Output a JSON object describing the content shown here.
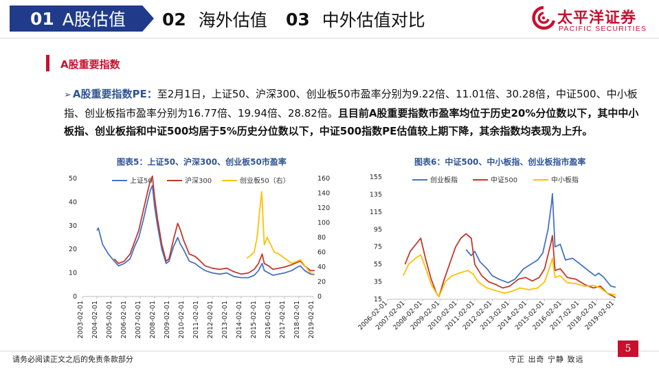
{
  "header": {
    "tabs": [
      {
        "num": "01",
        "label": "A股估值",
        "active": true
      },
      {
        "num": "02",
        "label": "海外估值",
        "active": false
      },
      {
        "num": "03",
        "label": "中外估值对比",
        "active": false
      }
    ],
    "logo_cn": "太平洋证券",
    "logo_en": "PACIFIC SECURITIES",
    "brand_color": "#c8102e",
    "tab_color": "#1f3b8a"
  },
  "section": {
    "title": "A股重要指数"
  },
  "paragraph": {
    "arrow": "➢",
    "lead": "A股重要指数PE：",
    "normal": "至2月1日，上证50、沪深300、创业板50市盈率分别为9.22倍、11.01倍、30.28倍，中证500、中小板指、创业板指市盈率分别为16.77倍、19.94倍、28.82倍。",
    "bold": "且目前A股重要指数市盈率均位于历史20%分位数以下，其中中小板指、创业板指和中证500均居于5%历史分位数以下，中证500指数PE估值较上期下降，其余指数均表现为上升。"
  },
  "chart_titles": {
    "chart5": "图表5：上证50、沪深300、创业板50市盈率",
    "chart6": "图表6：中证500、中小板指、创业板指市盈率"
  },
  "chart_data": [
    {
      "type": "line",
      "x_ticks": [
        "2003-02-01",
        "2004-02-01",
        "2005-02-01",
        "2006-02-01",
        "2007-02-01",
        "2008-02-01",
        "2009-02-01",
        "2010-02-01",
        "2011-02-01",
        "2012-02-01",
        "2013-02-01",
        "2014-02-01",
        "2015-02-01",
        "2016-02-01",
        "2017-02-01",
        "2018-02-01",
        "2019-02-01"
      ],
      "y_left": {
        "min": 0,
        "max": 50,
        "ticks": [
          0,
          10,
          20,
          30,
          40,
          50
        ]
      },
      "y_right": {
        "min": 0,
        "max": 160,
        "ticks": [
          0,
          20,
          40,
          60,
          80,
          100,
          120,
          140,
          160
        ]
      },
      "series": [
        {
          "name": "上证50",
          "color": "#4472c4",
          "axis": "left",
          "points": [
            [
              2004.0,
              28
            ],
            [
              2004.1,
              29
            ],
            [
              2004.4,
              22
            ],
            [
              2004.8,
              18
            ],
            [
              2005.2,
              15
            ],
            [
              2005.5,
              13
            ],
            [
              2005.9,
              14
            ],
            [
              2006.3,
              16
            ],
            [
              2006.6,
              21
            ],
            [
              2006.9,
              25
            ],
            [
              2007.2,
              32
            ],
            [
              2007.5,
              40
            ],
            [
              2007.7,
              45
            ],
            [
              2007.85,
              47
            ],
            [
              2008.0,
              38
            ],
            [
              2008.2,
              30
            ],
            [
              2008.5,
              20
            ],
            [
              2008.8,
              14
            ],
            [
              2009.0,
              15
            ],
            [
              2009.3,
              21
            ],
            [
              2009.6,
              25
            ],
            [
              2009.8,
              22
            ],
            [
              2010.0,
              20
            ],
            [
              2010.4,
              15
            ],
            [
              2010.8,
              14
            ],
            [
              2011.0,
              13
            ],
            [
              2011.5,
              11
            ],
            [
              2012.0,
              10
            ],
            [
              2012.5,
              9.5
            ],
            [
              2013.0,
              10
            ],
            [
              2013.5,
              8.5
            ],
            [
              2014.0,
              8
            ],
            [
              2014.5,
              8
            ],
            [
              2014.9,
              9
            ],
            [
              2015.2,
              11
            ],
            [
              2015.45,
              14
            ],
            [
              2015.6,
              11
            ],
            [
              2015.9,
              10
            ],
            [
              2016.2,
              9
            ],
            [
              2016.6,
              9.5
            ],
            [
              2017.0,
              10
            ],
            [
              2017.5,
              11
            ],
            [
              2017.9,
              12.5
            ],
            [
              2018.1,
              13
            ],
            [
              2018.4,
              11
            ],
            [
              2018.8,
              9.5
            ],
            [
              2019.08,
              9.22
            ]
          ]
        },
        {
          "name": "沪深300",
          "color": "#c0392b",
          "axis": "left",
          "points": [
            [
              2005.2,
              16
            ],
            [
              2005.5,
              14
            ],
            [
              2005.9,
              15
            ],
            [
              2006.3,
              18
            ],
            [
              2006.6,
              23
            ],
            [
              2006.9,
              28
            ],
            [
              2007.2,
              36
            ],
            [
              2007.5,
              44
            ],
            [
              2007.7,
              49
            ],
            [
              2007.85,
              51
            ],
            [
              2008.0,
              42
            ],
            [
              2008.2,
              33
            ],
            [
              2008.5,
              22
            ],
            [
              2008.8,
              15
            ],
            [
              2009.0,
              16
            ],
            [
              2009.3,
              24
            ],
            [
              2009.6,
              31
            ],
            [
              2009.8,
              28
            ],
            [
              2010.0,
              24
            ],
            [
              2010.4,
              18
            ],
            [
              2010.8,
              17
            ],
            [
              2011.0,
              16
            ],
            [
              2011.5,
              13
            ],
            [
              2012.0,
              12
            ],
            [
              2012.5,
              11.5
            ],
            [
              2013.0,
              12
            ],
            [
              2013.5,
              10.5
            ],
            [
              2014.0,
              9.5
            ],
            [
              2014.5,
              10
            ],
            [
              2014.9,
              11.5
            ],
            [
              2015.2,
              14
            ],
            [
              2015.45,
              18
            ],
            [
              2015.6,
              14
            ],
            [
              2015.9,
              13
            ],
            [
              2016.2,
              11.5
            ],
            [
              2016.6,
              12
            ],
            [
              2017.0,
              12.5
            ],
            [
              2017.5,
              13.5
            ],
            [
              2017.9,
              14.5
            ],
            [
              2018.1,
              15
            ],
            [
              2018.4,
              13
            ],
            [
              2018.8,
              11
            ],
            [
              2019.08,
              11.01
            ]
          ]
        },
        {
          "name": "创业板50（右）",
          "color": "#ffc000",
          "axis": "right",
          "points": [
            [
              2014.4,
              52
            ],
            [
              2014.6,
              55
            ],
            [
              2014.9,
              60
            ],
            [
              2015.1,
              80
            ],
            [
              2015.3,
              120
            ],
            [
              2015.42,
              142
            ],
            [
              2015.5,
              110
            ],
            [
              2015.6,
              70
            ],
            [
              2015.8,
              80
            ],
            [
              2016.0,
              72
            ],
            [
              2016.3,
              60
            ],
            [
              2016.6,
              58
            ],
            [
              2017.0,
              52
            ],
            [
              2017.5,
              45
            ],
            [
              2017.9,
              48
            ],
            [
              2018.1,
              50
            ],
            [
              2018.4,
              42
            ],
            [
              2018.8,
              32
            ],
            [
              2019.08,
              30.28
            ]
          ]
        }
      ]
    },
    {
      "type": "line",
      "x_ticks": [
        "2006-02-01",
        "2007-02-01",
        "2008-02-01",
        "2009-02-01",
        "2010-02-01",
        "2011-02-01",
        "2012-02-01",
        "2013-02-01",
        "2014-02-01",
        "2015-02-01",
        "2016-02-01",
        "2017-02-01",
        "2018-02-01",
        "2019-02-01"
      ],
      "y_left": {
        "min": 15,
        "max": 155,
        "ticks": [
          15,
          35,
          55,
          75,
          95,
          115,
          135,
          155
        ]
      },
      "series": [
        {
          "name": "创业板指",
          "color": "#4472c4",
          "points": [
            [
              2010.5,
              72
            ],
            [
              2010.8,
              65
            ],
            [
              2011.0,
              70
            ],
            [
              2011.3,
              58
            ],
            [
              2011.7,
              50
            ],
            [
              2012.0,
              42
            ],
            [
              2012.4,
              38
            ],
            [
              2012.9,
              34
            ],
            [
              2013.3,
              38
            ],
            [
              2013.8,
              50
            ],
            [
              2014.2,
              55
            ],
            [
              2014.6,
              60
            ],
            [
              2014.9,
              68
            ],
            [
              2015.2,
              95
            ],
            [
              2015.4,
              125
            ],
            [
              2015.45,
              136
            ],
            [
              2015.6,
              75
            ],
            [
              2015.9,
              78
            ],
            [
              2016.2,
              60
            ],
            [
              2016.6,
              62
            ],
            [
              2017.0,
              56
            ],
            [
              2017.5,
              48
            ],
            [
              2017.9,
              42
            ],
            [
              2018.1,
              45
            ],
            [
              2018.4,
              40
            ],
            [
              2018.8,
              30
            ],
            [
              2019.08,
              28.82
            ]
          ]
        },
        {
          "name": "中证500",
          "color": "#c0392b",
          "points": [
            [
              2007.0,
              55
            ],
            [
              2007.3,
              70
            ],
            [
              2007.7,
              80
            ],
            [
              2007.9,
              85
            ],
            [
              2008.2,
              60
            ],
            [
              2008.5,
              38
            ],
            [
              2008.8,
              22
            ],
            [
              2008.95,
              18
            ],
            [
              2009.2,
              35
            ],
            [
              2009.6,
              58
            ],
            [
              2009.9,
              75
            ],
            [
              2010.2,
              85
            ],
            [
              2010.5,
              90
            ],
            [
              2010.8,
              85
            ],
            [
              2011.0,
              55
            ],
            [
              2011.4,
              42
            ],
            [
              2011.8,
              35
            ],
            [
              2012.2,
              32
            ],
            [
              2012.6,
              28
            ],
            [
              2013.0,
              30
            ],
            [
              2013.5,
              38
            ],
            [
              2013.9,
              40
            ],
            [
              2014.3,
              36
            ],
            [
              2014.7,
              40
            ],
            [
              2015.0,
              50
            ],
            [
              2015.35,
              78
            ],
            [
              2015.45,
              88
            ],
            [
              2015.6,
              48
            ],
            [
              2015.9,
              50
            ],
            [
              2016.3,
              40
            ],
            [
              2016.8,
              38
            ],
            [
              2017.3,
              32
            ],
            [
              2017.8,
              28
            ],
            [
              2018.2,
              30
            ],
            [
              2018.6,
              22
            ],
            [
              2019.08,
              16.77
            ]
          ]
        },
        {
          "name": "中小板指",
          "color": "#ffc000",
          "points": [
            [
              2006.9,
              42
            ],
            [
              2007.2,
              55
            ],
            [
              2007.6,
              62
            ],
            [
              2007.9,
              66
            ],
            [
              2008.2,
              50
            ],
            [
              2008.5,
              32
            ],
            [
              2008.8,
              22
            ],
            [
              2008.95,
              18
            ],
            [
              2009.3,
              35
            ],
            [
              2009.7,
              42
            ],
            [
              2010.1,
              45
            ],
            [
              2010.6,
              48
            ],
            [
              2010.9,
              44
            ],
            [
              2011.2,
              35
            ],
            [
              2011.7,
              28
            ],
            [
              2012.2,
              25
            ],
            [
              2012.7,
              22
            ],
            [
              2013.1,
              24
            ],
            [
              2013.6,
              28
            ],
            [
              2014.1,
              26
            ],
            [
              2014.6,
              28
            ],
            [
              2015.0,
              35
            ],
            [
              2015.35,
              55
            ],
            [
              2015.45,
              62
            ],
            [
              2015.6,
              40
            ],
            [
              2015.9,
              42
            ],
            [
              2016.3,
              34
            ],
            [
              2016.8,
              33
            ],
            [
              2017.3,
              30
            ],
            [
              2017.8,
              31
            ],
            [
              2018.2,
              28
            ],
            [
              2018.6,
              22
            ],
            [
              2019.08,
              19.94
            ]
          ]
        }
      ]
    }
  ],
  "footer": {
    "disclaimer": "请务必阅读正文之后的免责条款部分",
    "motto": "守正 出奇 宁静 致远",
    "page": "5"
  }
}
